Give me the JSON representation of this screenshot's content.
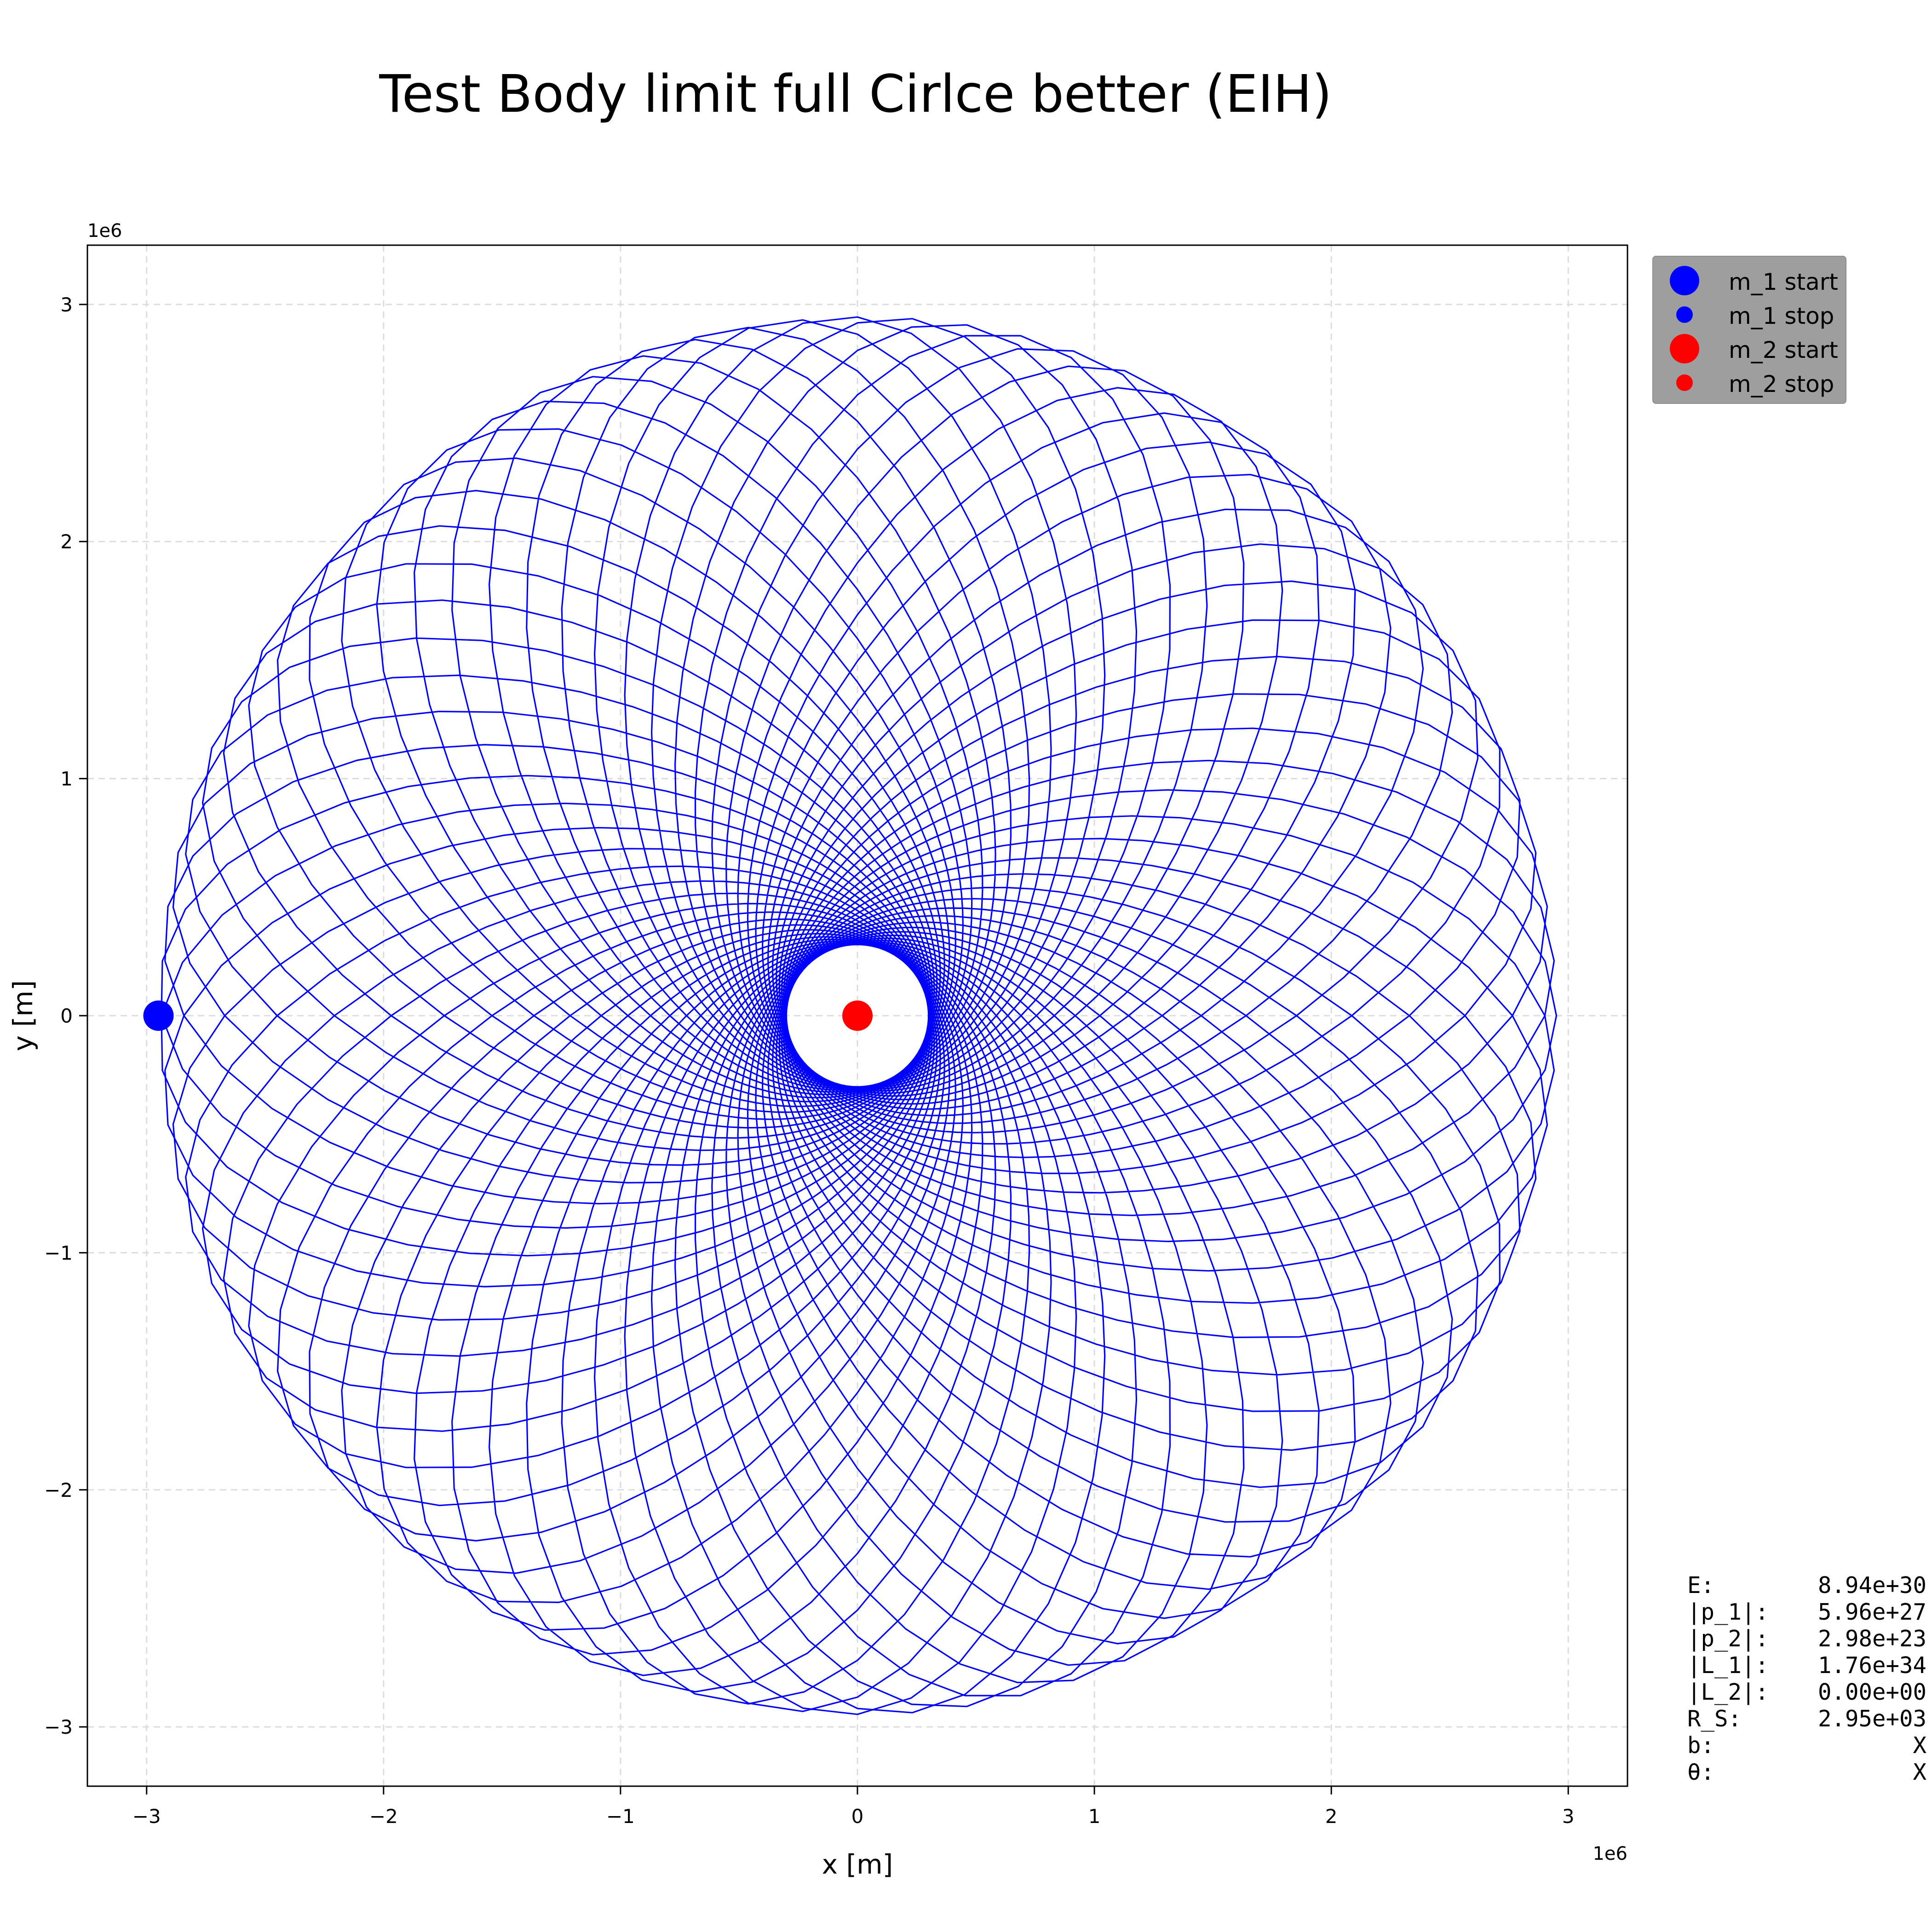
{
  "chart_data": {
    "type": "line",
    "title": "Test Body limit full Cirlce better (EIH)",
    "xlabel": "x [m]",
    "ylabel": "y [m]",
    "x_offset_label": "1e6",
    "y_offset_label": "1e6",
    "xlim": [
      -3.25,
      3.25
    ],
    "ylim": [
      -3.25,
      3.25
    ],
    "x_ticks": [
      -3,
      -2,
      -1,
      0,
      1,
      2,
      3
    ],
    "y_ticks": [
      -3,
      -2,
      -1,
      0,
      1,
      2,
      3
    ],
    "x_tick_labels": [
      "−3",
      "−2",
      "−1",
      "0",
      "1",
      "2",
      "3"
    ],
    "y_tick_labels": [
      "−3",
      "−2",
      "−1",
      "0",
      "1",
      "2",
      "3"
    ],
    "grid": true,
    "legend_position": "outside top-right",
    "orbit": {
      "series_name": "m_1",
      "color": "#0000ff",
      "apoapsis": 2.95,
      "periapsis": 0.3,
      "precession_steps": 72
    },
    "points": [
      {
        "name": "m_1 start",
        "x": -2.95,
        "y": 0.0,
        "color": "#0000ff",
        "size": "large"
      },
      {
        "name": "m_1 stop",
        "x": -2.95,
        "y": 0.0,
        "color": "#0000ff",
        "size": "small"
      },
      {
        "name": "m_2 start",
        "x": 0.0,
        "y": 0.0,
        "color": "#ff0000",
        "size": "large"
      },
      {
        "name": "m_2 stop",
        "x": 0.0,
        "y": 0.0,
        "color": "#ff0000",
        "size": "small"
      }
    ],
    "legend": [
      {
        "label": "m_1 start",
        "color": "#0000ff",
        "size": "large"
      },
      {
        "label": "m_1 stop",
        "color": "#0000ff",
        "size": "small"
      },
      {
        "label": "m_2 start",
        "color": "#ff0000",
        "size": "large"
      },
      {
        "label": "m_2 stop",
        "color": "#ff0000",
        "size": "small"
      }
    ],
    "stats": [
      {
        "label": "E:",
        "value": "8.94e+30"
      },
      {
        "label": "|p_1|:",
        "value": "5.96e+27"
      },
      {
        "label": "|p_2|:",
        "value": "2.98e+23"
      },
      {
        "label": "|L_1|:",
        "value": "1.76e+34"
      },
      {
        "label": "|L_2|:",
        "value": "0.00e+00"
      },
      {
        "label": "R_S:",
        "value": "2.95e+03"
      },
      {
        "label": "b:",
        "value": "X"
      },
      {
        "label": "θ:",
        "value": "X"
      }
    ]
  }
}
